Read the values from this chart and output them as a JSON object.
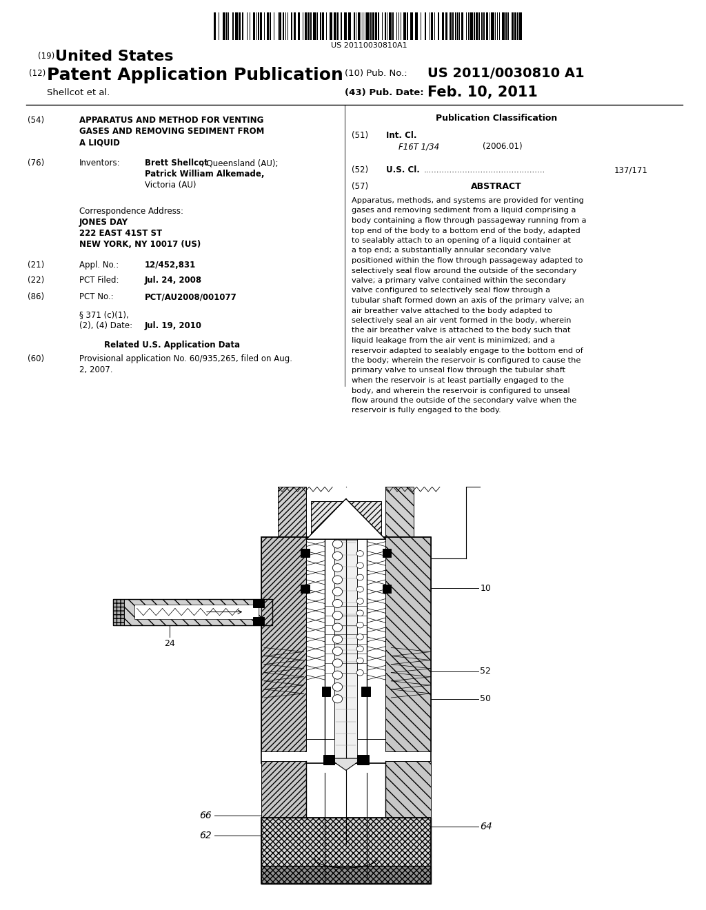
{
  "background_color": "#ffffff",
  "barcode_text": "US 20110030810A1",
  "header_line1_num": "(19)",
  "header_line1_text": "United States",
  "header_line2_num": "(12)",
  "header_line2_text": "Patent Application Publication",
  "header_pub_num_label": "(10) Pub. No.:",
  "header_pub_num_val": "US 2011/0030810 A1",
  "header_assignee": "Shellcot et al.",
  "header_date_label": "(43) Pub. Date:",
  "header_date_val": "Feb. 10, 2011",
  "title_num": "(54)",
  "title_text": "APPARATUS AND METHOD FOR VENTING\nGASES AND REMOVING SEDIMENT FROM\nA LIQUID",
  "inventors_num": "(76)",
  "inventors_label": "Inventors:",
  "inventors_text1_bold": "Brett Shellcot",
  "inventors_text1_normal": ", Queensland (AU);",
  "inventors_text2_bold": "Patrick William Alkemade,",
  "inventors_text3_normal": "Victoria (AU)",
  "corr_label": "Correspondence Address:",
  "corr_line1": "JONES DAY",
  "corr_line2": "222 EAST 41ST ST",
  "corr_line3": "NEW YORK, NY 10017 (US)",
  "appl_num": "(21)",
  "appl_label": "Appl. No.:",
  "appl_val": "12/452,831",
  "pct_filed_num": "(22)",
  "pct_filed_label": "PCT Filed:",
  "pct_filed_val": "Jul. 24, 2008",
  "pct_no_num": "(86)",
  "pct_no_label": "PCT No.:",
  "pct_no_val": "PCT/AU2008/001077",
  "section371_line1": "§ 371 (c)(1),",
  "section371_line2": "(2), (4) Date:",
  "section371_val": "Jul. 19, 2010",
  "related_header": "Related U.S. Application Data",
  "provisional_num": "(60)",
  "provisional_text1": "Provisional application No. 60/935,265, filed on Aug.",
  "provisional_text2": "2, 2007.",
  "pub_class_header": "Publication Classification",
  "intcl_num": "(51)",
  "intcl_label": "Int. Cl.",
  "intcl_class": "F16T 1/34",
  "intcl_year": "(2006.01)",
  "uscl_num": "(52)",
  "uscl_label": "U.S. Cl.",
  "uscl_dots": "...............................................",
  "uscl_val": "137/171",
  "abstract_num": "(57)",
  "abstract_header": "ABSTRACT",
  "abstract_text": "Apparatus, methods, and systems are provided for venting gases and removing sediment from a liquid comprising a body containing a flow through passageway running from a top end of the body to a bottom end of the body, adapted to sealably attach to an opening of a liquid container at a top end; a substantially annular secondary valve positioned within the flow through passageway adapted to selectively seal flow around the outside of the secondary valve; a primary valve contained within the secondary valve configured to selectively seal flow through a tubular shaft formed down an axis of the primary valve; an air breather valve attached to the body adapted to selectively seal an air vent formed in the body, wherein the air breather valve is attached to the body such that liquid leakage from the air vent is minimized; and a reservoir adapted to sealably engage to the bottom end of the body; wherein the reservoir is configured to cause the primary valve to unseal flow through the tubular shaft when the reservoir is at least partially engaged to the body, and wherein the reservoir is configured to unseal flow around the outside of the secondary valve when the reservoir is fully engaged to the body.",
  "diagram_label_10": "10",
  "diagram_label_24": "24",
  "diagram_label_50": "50",
  "diagram_label_52": "52",
  "diagram_label_62": "62",
  "diagram_label_64": "64",
  "diagram_label_66": "66"
}
